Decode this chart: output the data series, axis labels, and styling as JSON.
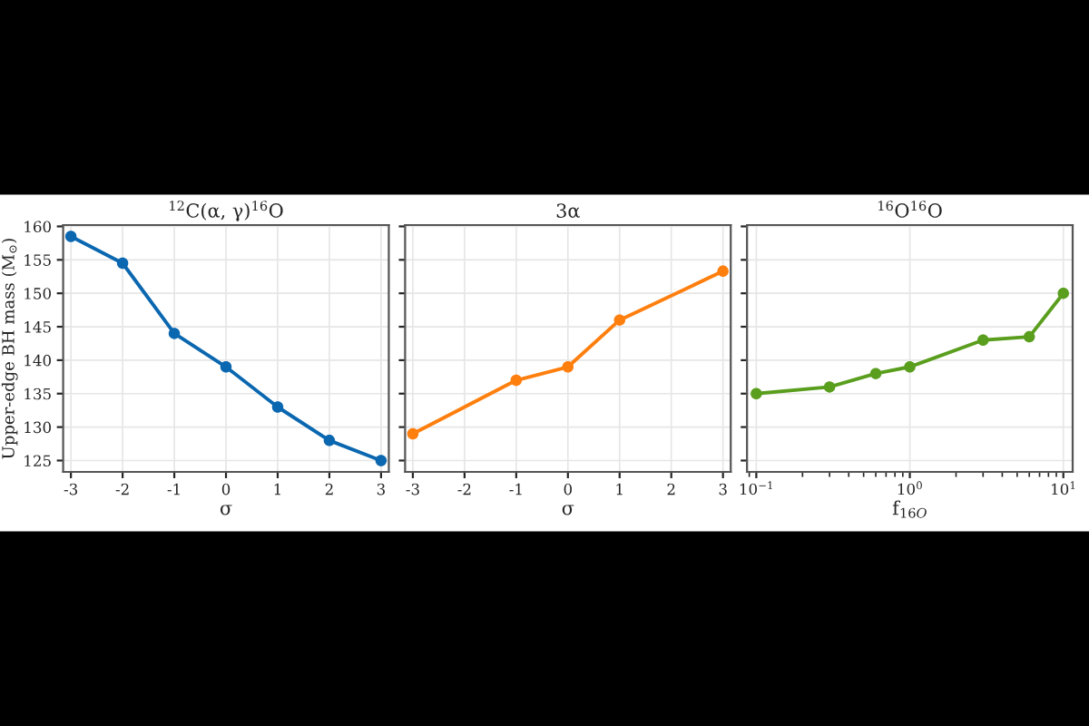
{
  "chart_data": [
    {
      "type": "line",
      "title": "$^{12}$C(α, γ)$^{16}$O",
      "xlabel": "σ",
      "ylabel": "Upper-edge BH mass (M$_{⊙}$)",
      "x": [
        -3,
        -2,
        -1,
        0,
        1,
        2,
        3
      ],
      "series": [
        {
          "color": "#0a67b0",
          "values": [
            158.5,
            154.5,
            144,
            139,
            133,
            128,
            125
          ]
        }
      ],
      "xlim": [
        -3.15,
        3.15
      ],
      "xticks": [
        {
          "value": -3,
          "label": "-3"
        },
        {
          "value": -2,
          "label": "-2"
        },
        {
          "value": -1,
          "label": "-1"
        },
        0,
        1,
        2,
        3
      ],
      "ylim": [
        123.3,
        160.2
      ],
      "yticks": [
        125,
        130,
        135,
        140,
        145,
        150,
        155,
        160
      ],
      "grid": true,
      "marker": "circle"
    },
    {
      "type": "line",
      "title": "3α",
      "xlabel": "σ",
      "x": [
        -3,
        -1,
        0,
        1,
        3
      ],
      "series": [
        {
          "color": "#ff7f0e",
          "values": [
            129,
            137,
            139,
            146,
            153.3
          ]
        }
      ],
      "xlim": [
        -3.15,
        3.15
      ],
      "xticks": [
        {
          "value": -3,
          "label": "-3"
        },
        {
          "value": -2,
          "label": "-2"
        },
        {
          "value": -1,
          "label": "-1"
        },
        0,
        1,
        2,
        3
      ],
      "ylim": [
        123.3,
        160.2
      ],
      "yticks": [
        125,
        130,
        135,
        140,
        145,
        150,
        155,
        160
      ],
      "tick_labels": "x",
      "grid": true,
      "marker": "circle"
    },
    {
      "type": "line",
      "title": "$^{16}$O$^{16}$O",
      "xlabel": "f$_{16O}$",
      "x": [
        0.1,
        0.3,
        0.6,
        1,
        3,
        6,
        10
      ],
      "log": "x",
      "series": [
        {
          "color": "#5a9e1e",
          "values": [
            135,
            136,
            138,
            139,
            143,
            143.5,
            150
          ]
        }
      ],
      "xlim": [
        0.087,
        11.5
      ],
      "xticks": [
        {
          "value": 0.1,
          "label": "10$^{−1}$"
        },
        {
          "value": 1,
          "label": "10$^{0}$"
        },
        {
          "value": 10,
          "label": "10$^{1}$"
        }
      ],
      "ylim": [
        123.3,
        160.2
      ],
      "yticks": [
        125,
        130,
        135,
        140,
        145,
        150,
        155,
        160
      ],
      "tick_labels": "x",
      "grid": true,
      "marker": "circle"
    }
  ]
}
